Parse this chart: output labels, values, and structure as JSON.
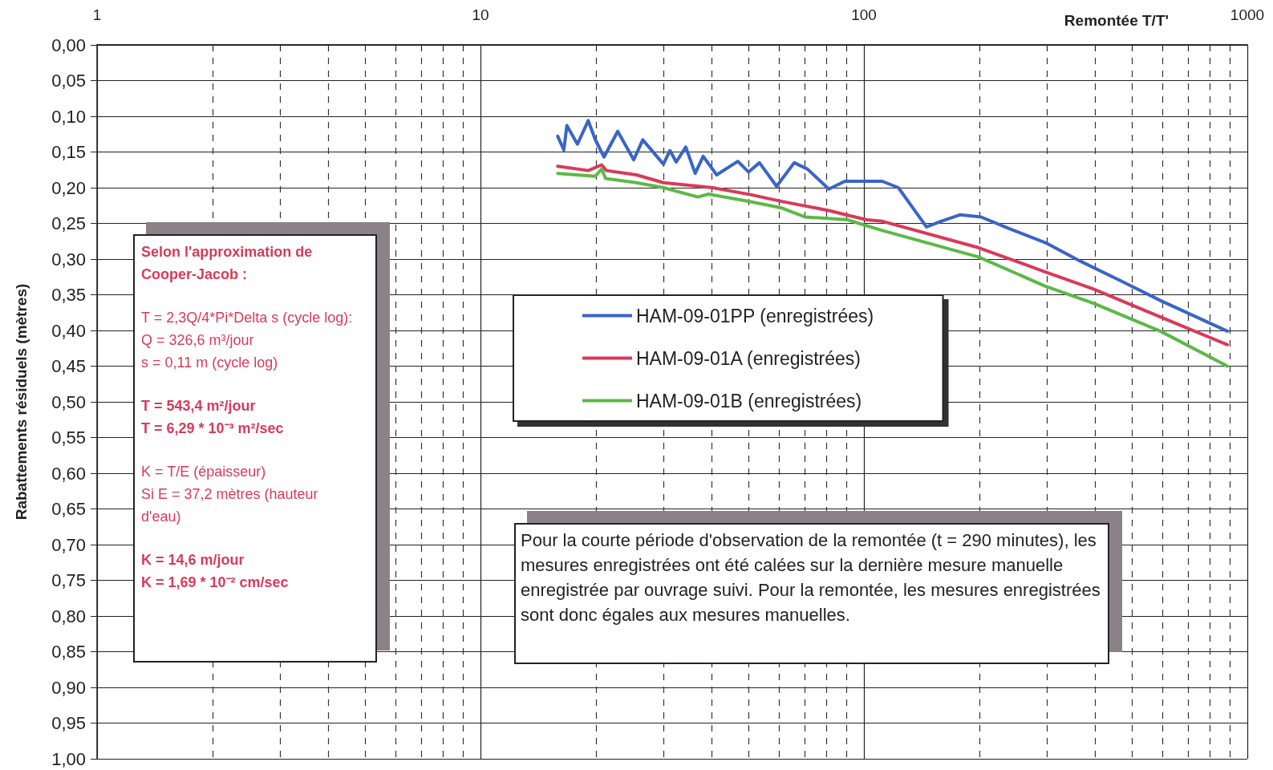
{
  "chart_data": {
    "type": "line",
    "xlabel": "Remontée T/T'",
    "ylabel": "Rabattements résiduels (mètres)",
    "log": "x",
    "xlim": [
      1,
      1000
    ],
    "xticks": [
      1,
      {
        "value": 2,
        "label": null
      },
      {
        "value": 3,
        "label": null
      },
      {
        "value": 4,
        "label": null
      },
      {
        "value": 5,
        "label": null
      },
      {
        "value": 6,
        "label": null
      },
      {
        "value": 7,
        "label": null
      },
      {
        "value": 8,
        "label": null
      },
      {
        "value": 9,
        "label": null
      },
      10,
      {
        "value": 20,
        "label": null
      },
      {
        "value": 30,
        "label": null
      },
      {
        "value": 40,
        "label": null
      },
      {
        "value": 50,
        "label": null
      },
      {
        "value": 60,
        "label": null
      },
      {
        "value": 70,
        "label": null
      },
      {
        "value": 80,
        "label": null
      },
      {
        "value": 90,
        "label": null
      },
      100,
      {
        "value": 200,
        "label": null
      },
      {
        "value": 300,
        "label": null
      },
      {
        "value": 400,
        "label": null
      },
      {
        "value": 500,
        "label": null
      },
      {
        "value": 600,
        "label": null
      },
      {
        "value": 700,
        "label": null
      },
      {
        "value": 800,
        "label": null
      },
      {
        "value": 900,
        "label": null
      },
      1000
    ],
    "ylim": [
      1,
      0
    ],
    "yticks": [
      {
        "value": 0,
        "label": "0,00"
      },
      {
        "value": 0.05,
        "label": "0,05"
      },
      {
        "value": 0.1,
        "label": "0,10"
      },
      {
        "value": 0.15,
        "label": "0,15"
      },
      {
        "value": 0.2,
        "label": "0,20"
      },
      {
        "value": 0.25,
        "label": "0,25"
      },
      {
        "value": 0.3,
        "label": "0,30"
      },
      {
        "value": 0.35,
        "label": "0,35"
      },
      {
        "value": 0.4,
        "label": "0,40"
      },
      {
        "value": 0.45,
        "label": "0,45"
      },
      {
        "value": 0.5,
        "label": "0,50"
      },
      {
        "value": 0.55,
        "label": "0,55"
      },
      {
        "value": 0.6,
        "label": "0,60"
      },
      {
        "value": 0.65,
        "label": "0,65"
      },
      {
        "value": 0.7,
        "label": "0,70"
      },
      {
        "value": 0.75,
        "label": "0,75"
      },
      {
        "value": 0.8,
        "label": "0,80"
      },
      {
        "value": 0.85,
        "label": "0,85"
      },
      {
        "value": 0.9,
        "label": "0,90"
      },
      {
        "value": 0.95,
        "label": "0,95"
      },
      {
        "value": 1,
        "label": "1,00"
      }
    ],
    "grid": true,
    "legend": "center",
    "marker": "none",
    "line_style": "solid",
    "series": [
      {
        "name": "HAM-09-01PP (enregistrées)",
        "color": "#3a64c8",
        "x": [
          15.9,
          16.5,
          16.8,
          17.9,
          19.1,
          19.9,
          21.0,
          22.8,
          25.1,
          26.5,
          30.0,
          31.2,
          32.4,
          34.3,
          36.3,
          38.1,
          41.3,
          46.9,
          50.0,
          53.4,
          59.2,
          65.8,
          71.3,
          81.0,
          89.2,
          111.7,
          123,
          145.6,
          159,
          178,
          202,
          241,
          297.5,
          367,
          474,
          593,
          887
        ],
        "values": [
          0.128,
          0.147,
          0.113,
          0.139,
          0.106,
          0.132,
          0.157,
          0.121,
          0.161,
          0.133,
          0.167,
          0.148,
          0.164,
          0.143,
          0.18,
          0.156,
          0.182,
          0.163,
          0.178,
          0.165,
          0.198,
          0.165,
          0.174,
          0.202,
          0.191,
          0.191,
          0.2,
          0.255,
          0.247,
          0.238,
          0.241,
          0.258,
          0.277,
          0.303,
          0.332,
          0.358,
          0.401
        ]
      },
      {
        "name": "HAM-09-01A (enregistrées)",
        "color": "#d93a5a",
        "x": [
          15.9,
          19.1,
          20.7,
          21.3,
          25.5,
          30.0,
          40.3,
          50.9,
          60.7,
          81.0,
          101.5,
          111.7,
          199,
          297.5,
          397,
          593,
          887
        ],
        "values": [
          0.17,
          0.176,
          0.168,
          0.176,
          0.182,
          0.193,
          0.2,
          0.21,
          0.219,
          0.232,
          0.245,
          0.247,
          0.284,
          0.318,
          0.342,
          0.381,
          0.42
        ]
      },
      {
        "name": "HAM-09-01B (enregistrées)",
        "color": "#5cb946",
        "x": [
          15.9,
          19.9,
          20.7,
          21.2,
          25.5,
          30.0,
          36.9,
          39.3,
          50.0,
          60.7,
          70.1,
          90.7,
          99.8,
          111.7,
          199,
          297.5,
          397,
          593,
          887
        ],
        "values": [
          0.18,
          0.184,
          0.174,
          0.187,
          0.193,
          0.2,
          0.213,
          0.209,
          0.219,
          0.228,
          0.241,
          0.245,
          0.252,
          0.26,
          0.297,
          0.338,
          0.362,
          0.401,
          0.45
        ]
      }
    ],
    "annotations": [
      "Selon l'approximation de Cooper-Jacob :",
      "T = 2,3Q/4*Pi*Delta s (cycle log):\nQ = 326,6 m³/jour\ns = 0,11 m (cycle log)",
      "T = 543,4 m²/jour\nT = 6,29 * 10⁻³ m²/sec",
      "K = T/E (épaisseur)\nSi E = 37,2 mètres (hauteur d'eau)",
      "K = 14,6 m/jour\nK = 1,69 * 10⁻² cm/sec",
      "Pour la courte période d'observation de la remontée (t = 290 minutes), les mesures enregistrées ont été calées sur la dernière mesure manuelle enregistrée par ouvrage suivi. Pour la remontée, les mesures enregistrées sont donc égales aux mesures manuelles."
    ]
  }
}
